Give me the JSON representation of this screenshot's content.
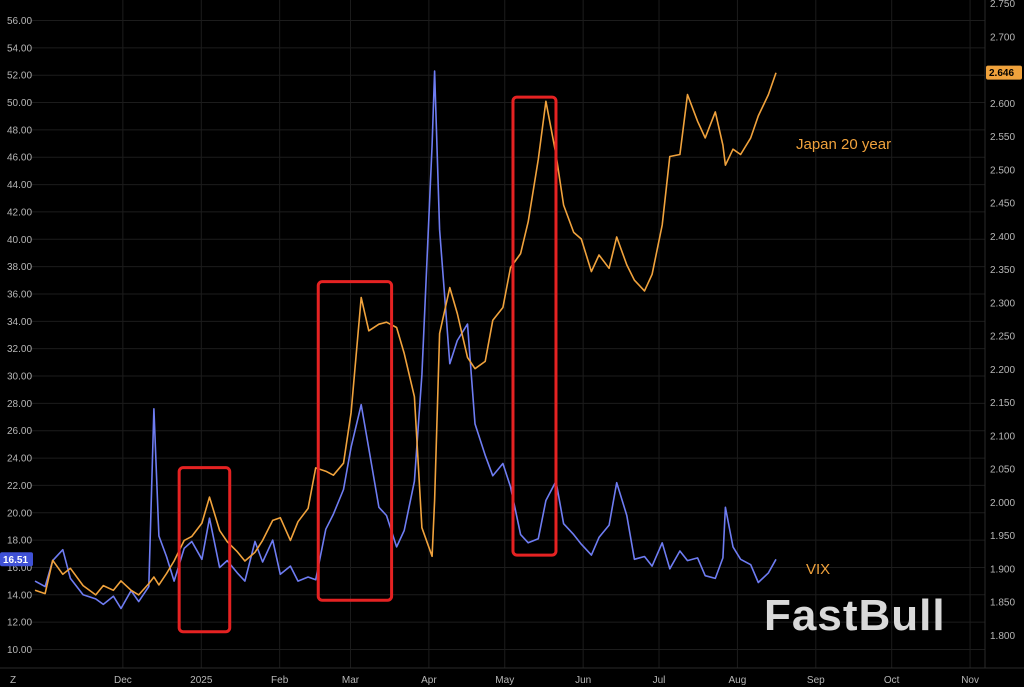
{
  "chart_data": {
    "type": "line",
    "title": "",
    "left_axis": {
      "ticks": [
        "56.00",
        "54.00",
        "52.00",
        "50.00",
        "48.00",
        "46.00",
        "44.00",
        "42.00",
        "40.00",
        "38.00",
        "36.00",
        "34.00",
        "32.00",
        "30.00",
        "28.00",
        "26.00",
        "24.00",
        "22.00",
        "20.00",
        "18.00",
        "16.00",
        "14.00",
        "12.00",
        "10.00"
      ],
      "range": [
        10,
        56
      ]
    },
    "right_axis": {
      "ticks": [
        "2.750",
        "2.700",
        "2.650",
        "2.600",
        "2.550",
        "2.500",
        "2.450",
        "2.400",
        "2.350",
        "2.300",
        "2.250",
        "2.200",
        "2.150",
        "2.100",
        "2.050",
        "2.000",
        "1.950",
        "1.900",
        "1.850",
        "1.800"
      ],
      "range": [
        1.8,
        2.75
      ]
    },
    "x_axis": {
      "labels": [
        "Dec",
        "2025",
        "Feb",
        "Mar",
        "Apr",
        "May",
        "Jun",
        "Jul",
        "Aug",
        "Sep",
        "Oct",
        "Nov"
      ],
      "corner_label": "Z"
    },
    "series": [
      {
        "name": "VIX",
        "axis": "left",
        "color": "#6e7cf2",
        "last_value": "16.51",
        "points": [
          [
            "2024-11-01",
            15
          ],
          [
            "2024-11-05",
            14.6
          ],
          [
            "2024-11-08",
            16.5
          ],
          [
            "2024-11-12",
            17.3
          ],
          [
            "2024-11-15",
            15.2
          ],
          [
            "2024-11-20",
            14
          ],
          [
            "2024-11-25",
            13.7
          ],
          [
            "2024-11-28",
            13.3
          ],
          [
            "2024-12-02",
            13.9
          ],
          [
            "2024-12-05",
            13
          ],
          [
            "2024-12-09",
            14.3
          ],
          [
            "2024-12-12",
            13.5
          ],
          [
            "2024-12-16",
            14.6
          ],
          [
            "2024-12-18",
            27.6
          ],
          [
            "2024-12-20",
            18.3
          ],
          [
            "2024-12-23",
            16.8
          ],
          [
            "2024-12-26",
            15
          ],
          [
            "2024-12-30",
            17.4
          ],
          [
            "2025-01-02",
            17.9
          ],
          [
            "2025-01-06",
            16.6
          ],
          [
            "2025-01-09",
            19.6
          ],
          [
            "2025-01-13",
            16
          ],
          [
            "2025-01-16",
            16.5
          ],
          [
            "2025-01-20",
            15.6
          ],
          [
            "2025-01-23",
            15
          ],
          [
            "2025-01-27",
            17.9
          ],
          [
            "2025-01-30",
            16.4
          ],
          [
            "2025-02-03",
            18
          ],
          [
            "2025-02-06",
            15.5
          ],
          [
            "2025-02-10",
            16.1
          ],
          [
            "2025-02-13",
            15
          ],
          [
            "2025-02-17",
            15.3
          ],
          [
            "2025-02-20",
            15.1
          ],
          [
            "2025-02-24",
            18.8
          ],
          [
            "2025-02-27",
            19.9
          ],
          [
            "2025-03-03",
            21.7
          ],
          [
            "2025-03-06",
            24.8
          ],
          [
            "2025-03-10",
            27.9
          ],
          [
            "2025-03-13",
            24.7
          ],
          [
            "2025-03-17",
            20.4
          ],
          [
            "2025-03-20",
            19.8
          ],
          [
            "2025-03-24",
            17.5
          ],
          [
            "2025-03-27",
            18.7
          ],
          [
            "2025-03-31",
            22.3
          ],
          [
            "2025-04-03",
            30.1
          ],
          [
            "2025-04-07",
            46.9
          ],
          [
            "2025-04-08",
            52.3
          ],
          [
            "2025-04-10",
            40.7
          ],
          [
            "2025-04-14",
            30.9
          ],
          [
            "2025-04-17",
            32.6
          ],
          [
            "2025-04-21",
            33.8
          ],
          [
            "2025-04-24",
            26.5
          ],
          [
            "2025-04-28",
            24.2
          ],
          [
            "2025-05-01",
            22.7
          ],
          [
            "2025-05-05",
            23.6
          ],
          [
            "2025-05-08",
            21.9
          ],
          [
            "2025-05-12",
            18.4
          ],
          [
            "2025-05-15",
            17.8
          ],
          [
            "2025-05-19",
            18.1
          ],
          [
            "2025-05-22",
            20.9
          ],
          [
            "2025-05-26",
            22.3
          ],
          [
            "2025-05-29",
            19.2
          ],
          [
            "2025-06-02",
            18.4
          ],
          [
            "2025-06-05",
            17.7
          ],
          [
            "2025-06-09",
            16.9
          ],
          [
            "2025-06-12",
            18.2
          ],
          [
            "2025-06-16",
            19.1
          ],
          [
            "2025-06-19",
            22.2
          ],
          [
            "2025-06-23",
            19.8
          ],
          [
            "2025-06-26",
            16.6
          ],
          [
            "2025-06-30",
            16.8
          ],
          [
            "2025-07-03",
            16.1
          ],
          [
            "2025-07-07",
            17.8
          ],
          [
            "2025-07-10",
            15.9
          ],
          [
            "2025-07-14",
            17.2
          ],
          [
            "2025-07-17",
            16.5
          ],
          [
            "2025-07-21",
            16.7
          ],
          [
            "2025-07-24",
            15.4
          ],
          [
            "2025-07-28",
            15.2
          ],
          [
            "2025-07-31",
            16.7
          ],
          [
            "2025-08-01",
            20.4
          ],
          [
            "2025-08-04",
            17.5
          ],
          [
            "2025-08-07",
            16.6
          ],
          [
            "2025-08-11",
            16.2
          ],
          [
            "2025-08-14",
            14.9
          ],
          [
            "2025-08-18",
            15.6
          ],
          [
            "2025-08-21",
            16.6
          ]
        ]
      },
      {
        "name": "Japan 20 year",
        "axis": "right",
        "color": "#f0a23c",
        "last_value": "2.646",
        "points": [
          [
            "2024-11-01",
            1.868
          ],
          [
            "2024-11-05",
            1.863
          ],
          [
            "2024-11-08",
            1.913
          ],
          [
            "2024-11-12",
            1.892
          ],
          [
            "2024-11-15",
            1.901
          ],
          [
            "2024-11-20",
            1.875
          ],
          [
            "2024-11-25",
            1.861
          ],
          [
            "2024-11-28",
            1.875
          ],
          [
            "2024-12-02",
            1.868
          ],
          [
            "2024-12-05",
            1.882
          ],
          [
            "2024-12-09",
            1.868
          ],
          [
            "2024-12-12",
            1.861
          ],
          [
            "2024-12-16",
            1.878
          ],
          [
            "2024-12-18",
            1.888
          ],
          [
            "2024-12-20",
            1.876
          ],
          [
            "2024-12-23",
            1.893
          ],
          [
            "2024-12-26",
            1.912
          ],
          [
            "2024-12-30",
            1.943
          ],
          [
            "2025-01-02",
            1.949
          ],
          [
            "2025-01-06",
            1.969
          ],
          [
            "2025-01-09",
            2.008
          ],
          [
            "2025-01-13",
            1.958
          ],
          [
            "2025-01-16",
            1.941
          ],
          [
            "2025-01-20",
            1.926
          ],
          [
            "2025-01-23",
            1.912
          ],
          [
            "2025-01-27",
            1.925
          ],
          [
            "2025-01-30",
            1.943
          ],
          [
            "2025-02-03",
            1.973
          ],
          [
            "2025-02-06",
            1.977
          ],
          [
            "2025-02-10",
            1.943
          ],
          [
            "2025-02-13",
            1.971
          ],
          [
            "2025-02-17",
            1.991
          ],
          [
            "2025-02-20",
            2.052
          ],
          [
            "2025-02-24",
            2.047
          ],
          [
            "2025-02-27",
            2.041
          ],
          [
            "2025-03-03",
            2.059
          ],
          [
            "2025-03-06",
            2.135
          ],
          [
            "2025-03-10",
            2.308
          ],
          [
            "2025-03-13",
            2.258
          ],
          [
            "2025-03-17",
            2.268
          ],
          [
            "2025-03-20",
            2.271
          ],
          [
            "2025-03-24",
            2.263
          ],
          [
            "2025-03-27",
            2.224
          ],
          [
            "2025-03-31",
            2.159
          ],
          [
            "2025-04-03",
            1.962
          ],
          [
            "2025-04-07",
            1.919
          ],
          [
            "2025-04-08",
            2.003
          ],
          [
            "2025-04-10",
            2.254
          ],
          [
            "2025-04-14",
            2.323
          ],
          [
            "2025-04-17",
            2.284
          ],
          [
            "2025-04-21",
            2.218
          ],
          [
            "2025-04-24",
            2.201
          ],
          [
            "2025-04-28",
            2.212
          ],
          [
            "2025-05-01",
            2.274
          ],
          [
            "2025-05-05",
            2.293
          ],
          [
            "2025-05-08",
            2.353
          ],
          [
            "2025-05-12",
            2.374
          ],
          [
            "2025-05-15",
            2.422
          ],
          [
            "2025-05-19",
            2.516
          ],
          [
            "2025-05-22",
            2.603
          ],
          [
            "2025-05-26",
            2.523
          ],
          [
            "2025-05-29",
            2.447
          ],
          [
            "2025-06-02",
            2.406
          ],
          [
            "2025-06-05",
            2.396
          ],
          [
            "2025-06-09",
            2.347
          ],
          [
            "2025-06-12",
            2.372
          ],
          [
            "2025-06-16",
            2.352
          ],
          [
            "2025-06-19",
            2.399
          ],
          [
            "2025-06-23",
            2.357
          ],
          [
            "2025-06-26",
            2.334
          ],
          [
            "2025-06-30",
            2.318
          ],
          [
            "2025-07-03",
            2.343
          ],
          [
            "2025-07-07",
            2.417
          ],
          [
            "2025-07-10",
            2.52
          ],
          [
            "2025-07-14",
            2.523
          ],
          [
            "2025-07-17",
            2.613
          ],
          [
            "2025-07-21",
            2.573
          ],
          [
            "2025-07-24",
            2.548
          ],
          [
            "2025-07-28",
            2.587
          ],
          [
            "2025-07-31",
            2.537
          ],
          [
            "2025-08-01",
            2.507
          ],
          [
            "2025-08-04",
            2.531
          ],
          [
            "2025-08-07",
            2.523
          ],
          [
            "2025-08-11",
            2.548
          ],
          [
            "2025-08-14",
            2.581
          ],
          [
            "2025-08-18",
            2.613
          ],
          [
            "2025-08-21",
            2.646
          ]
        ]
      }
    ],
    "highlight_boxes": [
      {
        "start": "2024-12-28",
        "end": "2025-01-17",
        "ymin": 11.3,
        "ymax": 23.3
      },
      {
        "start": "2025-02-21",
        "end": "2025-03-22",
        "ymin": 13.6,
        "ymax": 36.9
      },
      {
        "start": "2025-05-09",
        "end": "2025-05-26",
        "ymin": 16.9,
        "ymax": 50.4
      }
    ],
    "colors": {
      "background": "#000000",
      "grid": "#1c1c1c",
      "highlight": "#e52222"
    }
  },
  "watermark": "FastBull"
}
